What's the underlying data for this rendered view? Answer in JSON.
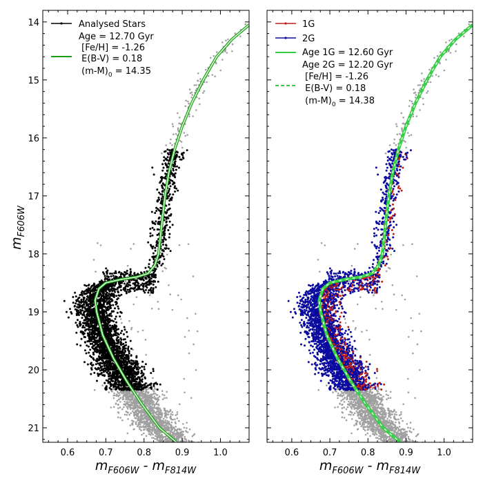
{
  "chart_data": [
    {
      "type": "scatter",
      "panel": "left",
      "xlabel": "m_F606W - m_F814W",
      "ylabel": "m_F606W",
      "xlim": [
        0.535,
        1.075
      ],
      "ylim": [
        21.25,
        13.8
      ],
      "y_inverted": true,
      "xticks": [
        0.6,
        0.7,
        0.8,
        0.9,
        1.0
      ],
      "yticks": [
        14,
        15,
        16,
        17,
        18,
        19,
        20,
        21
      ],
      "grid": false,
      "legend_position": "top-left",
      "legend": [
        {
          "label": "Analysed Stars",
          "style": "dot-line",
          "color": "#000000"
        },
        {
          "label": "Age = 12.70 Gyr",
          "style": "none"
        },
        {
          "label": " [Fe/H] = -1.26",
          "style": "solid",
          "color": "#1a9e1a"
        },
        {
          "label": " E(B-V) = 0.18",
          "style": "none"
        },
        {
          "label": " (m-M)0 = 14.35",
          "style": "none",
          "main": " (m-M)",
          "sub": "0",
          "tail": " = 14.35"
        }
      ],
      "series": [
        {
          "name": "Analysed Stars",
          "role": "analysed stars",
          "color": "#000000",
          "mag_range": [
            18.3,
            20.35
          ]
        },
        {
          "role": "field stars",
          "color": "#a0a0a0"
        },
        {
          "role": "isochrone",
          "color": "#1a9e1a",
          "age_gyr": 12.7,
          "feh": -1.26,
          "ebv": 0.18,
          "distance_modulus": 14.35
        }
      ]
    },
    {
      "type": "scatter",
      "panel": "right",
      "xlabel": "m_F606W - m_F814W",
      "ylabel": "",
      "xlim": [
        0.535,
        1.075
      ],
      "ylim": [
        21.25,
        13.8
      ],
      "y_inverted": true,
      "xticks": [
        0.6,
        0.7,
        0.8,
        0.9,
        1.0
      ],
      "yticks": [
        14,
        15,
        16,
        17,
        18,
        19,
        20,
        21
      ],
      "grid": false,
      "legend_position": "top-left",
      "legend": [
        {
          "label": "1G",
          "style": "dot-line",
          "color": "#c0201a"
        },
        {
          "label": "2G",
          "style": "dot-line",
          "color": "#0a0aa0"
        },
        {
          "label": "Age 1G = 12.60 Gyr",
          "style": "solid",
          "color": "#2ecc40"
        },
        {
          "label": "Age 2G = 12.20 Gyr",
          "style": "none"
        },
        {
          "label": " [Fe/H] = -1.26",
          "style": "none"
        },
        {
          "label": " E(B-V) = 0.18",
          "style": "dashed",
          "color": "#2ecc40"
        },
        {
          "label": " (m-M)0 = 14.38",
          "style": "none",
          "main": " (m-M)",
          "sub": "0",
          "tail": " = 14.38"
        }
      ],
      "series": [
        {
          "name": "1G",
          "role": "first generation",
          "color": "#c0201a",
          "age_gyr": 12.6
        },
        {
          "name": "2G",
          "role": "second generation",
          "color": "#0a0aa0",
          "age_gyr": 12.2
        },
        {
          "role": "field stars",
          "color": "#a0a0a0"
        },
        {
          "role": "isochrone 1G",
          "color": "#2ecc40",
          "linestyle": "solid",
          "age_gyr": 12.6,
          "feh": -1.26,
          "ebv": 0.18,
          "distance_modulus": 14.38
        },
        {
          "role": "isochrone 2G",
          "color": "#2ecc40",
          "linestyle": "dashed",
          "age_gyr": 12.2,
          "feh": -1.26,
          "ebv": 0.18,
          "distance_modulus": 14.38
        }
      ]
    }
  ],
  "isochrone_points": [
    [
      0.885,
      21.25
    ],
    [
      0.84,
      21.0
    ],
    [
      0.795,
      20.6
    ],
    [
      0.755,
      20.2
    ],
    [
      0.72,
      19.8
    ],
    [
      0.692,
      19.4
    ],
    [
      0.676,
      19.0
    ],
    [
      0.672,
      18.8
    ],
    [
      0.682,
      18.6
    ],
    [
      0.7,
      18.5
    ],
    [
      0.74,
      18.44
    ],
    [
      0.78,
      18.4
    ],
    [
      0.81,
      18.34
    ],
    [
      0.828,
      18.2
    ],
    [
      0.838,
      18.0
    ],
    [
      0.843,
      17.7
    ],
    [
      0.848,
      17.4
    ],
    [
      0.855,
      17.0
    ],
    [
      0.865,
      16.6
    ],
    [
      0.88,
      16.2
    ],
    [
      0.9,
      15.8
    ],
    [
      0.925,
      15.4
    ],
    [
      0.955,
      15.0
    ],
    [
      0.99,
      14.6
    ],
    [
      1.03,
      14.3
    ],
    [
      1.075,
      14.05
    ]
  ],
  "colors": {
    "field": "#a0a0a0",
    "analysed": "#000000",
    "first_gen": "#c0201a",
    "second_gen": "#0a0aa0",
    "iso_outer": "#1a9e1a",
    "iso_core": "#d9ffd0",
    "iso_light": "#2ecc40"
  }
}
